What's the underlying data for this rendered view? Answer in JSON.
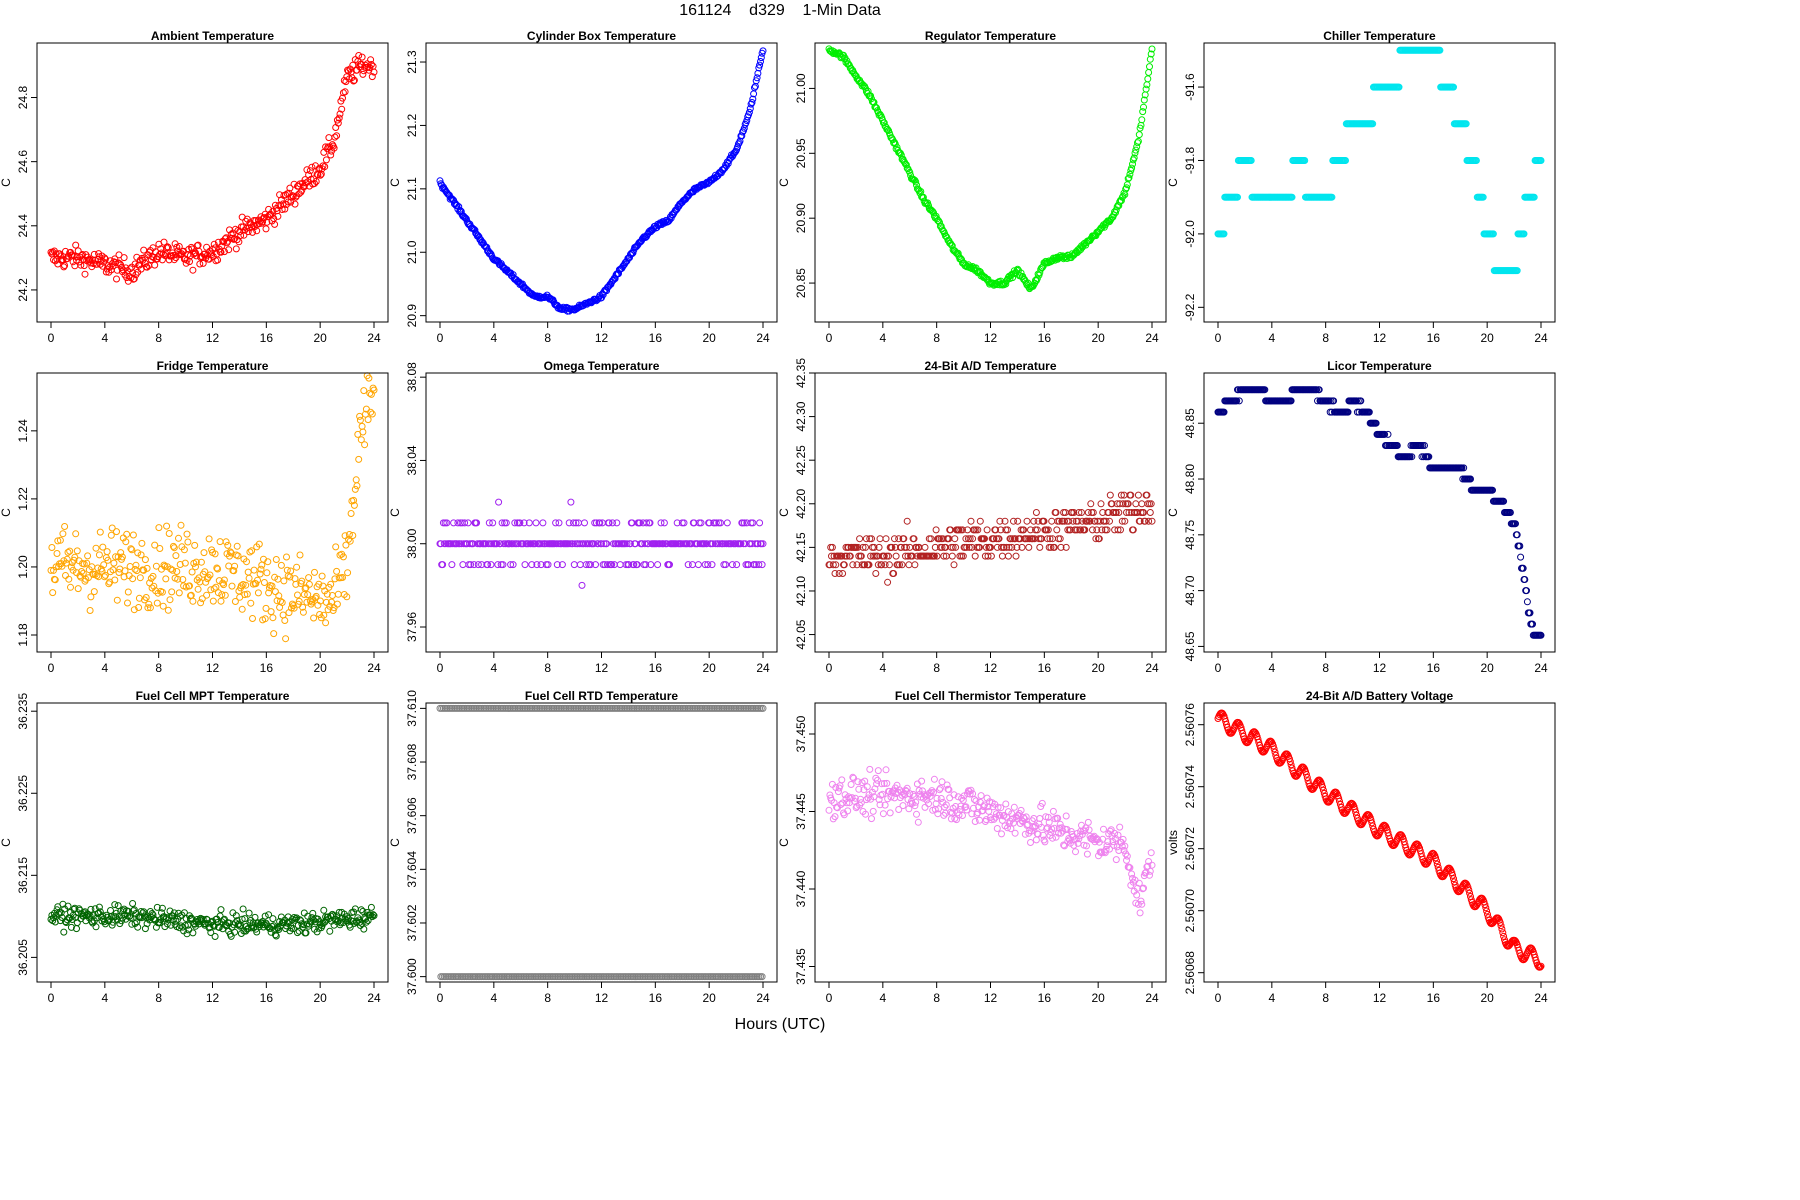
{
  "header": {
    "title": "161124    d329    1-Min Data"
  },
  "footer": {
    "xlabel": "Hours (UTC)"
  },
  "x_axis": {
    "ticks": [
      0,
      4,
      8,
      12,
      16,
      20,
      24
    ],
    "xlim": [
      0,
      24
    ]
  },
  "chart_data": [
    {
      "id": "ambient",
      "type": "scatter",
      "title": "Ambient Temperature",
      "ylabel": "C",
      "color": "#ff0000",
      "ylim": [
        24.1,
        24.97
      ],
      "yticks": [
        24.2,
        24.4,
        24.6,
        24.8
      ],
      "ytick_labels": [
        "24.2",
        "24.4",
        "24.6",
        "24.8"
      ],
      "x": [
        0,
        2,
        4,
        6,
        8,
        10,
        12,
        14,
        16,
        18,
        20,
        21,
        22,
        23,
        24
      ],
      "y": [
        24.3,
        24.3,
        24.28,
        24.26,
        24.32,
        24.3,
        24.32,
        24.38,
        24.42,
        24.5,
        24.58,
        24.66,
        24.86,
        24.9,
        24.9
      ],
      "spread": 0.06
    },
    {
      "id": "cylinder",
      "type": "scatter",
      "title": "Cylinder Box Temperature",
      "ylabel": "C",
      "color": "#0000ff",
      "ylim": [
        20.89,
        21.33
      ],
      "yticks": [
        20.9,
        21.0,
        21.1,
        21.2,
        21.3
      ],
      "ytick_labels": [
        "20.9",
        "21.0",
        "21.1",
        "21.2",
        "21.3"
      ],
      "x": [
        0,
        1,
        2,
        3,
        4,
        5,
        6,
        7,
        8,
        9,
        10,
        11,
        12,
        13,
        14,
        15,
        16,
        17,
        18,
        19,
        20,
        21,
        22,
        23,
        24
      ],
      "y": [
        21.11,
        21.08,
        21.05,
        21.02,
        20.99,
        20.97,
        20.95,
        20.93,
        20.93,
        20.91,
        20.91,
        20.92,
        20.93,
        20.96,
        20.99,
        21.02,
        21.04,
        21.05,
        21.08,
        21.1,
        21.11,
        21.13,
        21.16,
        21.22,
        21.32
      ],
      "spread": 0.005
    },
    {
      "id": "regulator",
      "type": "scatter",
      "title": "Regulator Temperature",
      "ylabel": "C",
      "color": "#00ee00",
      "ylim": [
        20.82,
        21.035
      ],
      "yticks": [
        20.85,
        20.9,
        20.95,
        21.0
      ],
      "ytick_labels": [
        "20.85",
        "20.90",
        "20.95",
        "21.00"
      ],
      "x": [
        0,
        1,
        2,
        3,
        4,
        5,
        6,
        7,
        8,
        9,
        10,
        11,
        12,
        13,
        14,
        15,
        16,
        17,
        18,
        19,
        20,
        21,
        22,
        23,
        24
      ],
      "y": [
        21.03,
        21.025,
        21.01,
        20.995,
        20.975,
        20.955,
        20.935,
        20.915,
        20.9,
        20.88,
        20.865,
        20.86,
        20.85,
        20.85,
        20.86,
        20.845,
        20.865,
        20.87,
        20.87,
        20.88,
        20.89,
        20.9,
        20.92,
        20.96,
        21.03
      ],
      "spread": 0.003
    },
    {
      "id": "chiller",
      "type": "scatter",
      "title": "Chiller Temperature",
      "ylabel": "C",
      "color": "#00e5ee",
      "ylim": [
        -92.24,
        -91.48
      ],
      "yticks": [
        -92.2,
        -92.0,
        -91.8,
        -91.6
      ],
      "ytick_labels": [
        "-92.2",
        "-92.0",
        "-91.8",
        "-91.6"
      ],
      "x": [
        0,
        1,
        2,
        3,
        4,
        5,
        6,
        7,
        8,
        9,
        10,
        11,
        12,
        13,
        14,
        15,
        16,
        17,
        18,
        19,
        20,
        21,
        22,
        23,
        24
      ],
      "y": [
        -92.0,
        -91.9,
        -91.8,
        -91.9,
        -91.9,
        -91.9,
        -91.8,
        -91.9,
        -91.9,
        -91.8,
        -91.7,
        -91.7,
        -91.6,
        -91.6,
        -91.5,
        -91.5,
        -91.5,
        -91.6,
        -91.7,
        -91.8,
        -92.0,
        -92.1,
        -92.1,
        -91.9,
        -91.8
      ],
      "spread": 0.0,
      "quant": 0.1
    },
    {
      "id": "fridge",
      "type": "scatter",
      "title": "Fridge Temperature",
      "ylabel": "C",
      "color": "#ffa500",
      "ylim": [
        1.175,
        1.257
      ],
      "yticks": [
        1.18,
        1.2,
        1.22,
        1.24
      ],
      "ytick_labels": [
        "1.18",
        "1.20",
        "1.22",
        "1.24"
      ],
      "x": [
        0,
        4,
        8,
        12,
        16,
        20,
        21,
        22,
        23,
        24
      ],
      "y": [
        1.2,
        1.2,
        1.2,
        1.2,
        1.195,
        1.19,
        1.19,
        1.2,
        1.24,
        1.25
      ],
      "spread": 0.02
    },
    {
      "id": "omega",
      "type": "scatter",
      "title": "Omega Temperature",
      "ylabel": "C",
      "color": "#a020f0",
      "ylim": [
        37.948,
        38.082
      ],
      "yticks": [
        37.96,
        38.0,
        38.04,
        38.08
      ],
      "ytick_labels": [
        "37.96",
        "38.00",
        "38.04",
        "38.08"
      ],
      "x": [
        0,
        12,
        24
      ],
      "y": [
        38.0,
        38.0,
        38.0
      ],
      "spread": 0.02,
      "quant": 0.01
    },
    {
      "id": "ad24temp",
      "type": "scatter",
      "title": "24-Bit A/D Temperature",
      "ylabel": "C",
      "color": "#b22222",
      "ylim": [
        42.03,
        42.35
      ],
      "yticks": [
        42.05,
        42.1,
        42.15,
        42.2,
        42.25,
        42.3,
        42.35
      ],
      "ytick_labels": [
        "42.05",
        "42.10",
        "42.15",
        "42.20",
        "42.25",
        "42.30",
        "42.35"
      ],
      "x": [
        0,
        4,
        8,
        12,
        16,
        20,
        24
      ],
      "y": [
        42.14,
        42.14,
        42.15,
        42.16,
        42.17,
        42.18,
        42.2
      ],
      "spread": 0.04,
      "quant": 0.01
    },
    {
      "id": "licor",
      "type": "scatter",
      "title": "Licor Temperature",
      "ylabel": "C",
      "color": "#000080",
      "ylim": [
        48.645,
        48.895
      ],
      "yticks": [
        48.65,
        48.7,
        48.75,
        48.8,
        48.85
      ],
      "ytick_labels": [
        "48.65",
        "48.70",
        "48.75",
        "48.80",
        "48.85"
      ],
      "x": [
        0,
        1,
        2,
        3,
        4,
        5,
        6,
        7,
        8,
        9,
        10,
        11,
        12,
        13,
        14,
        15,
        16,
        17,
        18,
        19,
        20,
        21,
        22,
        22.5,
        23,
        23.5,
        24
      ],
      "y": [
        48.86,
        48.87,
        48.88,
        48.88,
        48.87,
        48.87,
        48.88,
        48.88,
        48.87,
        48.86,
        48.87,
        48.86,
        48.84,
        48.83,
        48.82,
        48.83,
        48.81,
        48.81,
        48.81,
        48.79,
        48.79,
        48.78,
        48.76,
        48.73,
        48.69,
        48.66,
        48.66
      ],
      "spread": 0.005,
      "quant": 0.01
    },
    {
      "id": "fcmpt",
      "type": "scatter",
      "title": "Fuel Cell MPT Temperature",
      "ylabel": "C",
      "color": "#006400",
      "ylim": [
        36.202,
        36.236
      ],
      "yticks": [
        36.205,
        36.215,
        36.225,
        36.235
      ],
      "ytick_labels": [
        "36.205",
        "36.215",
        "36.225",
        "36.235"
      ],
      "x": [
        0,
        6,
        12,
        18,
        24
      ],
      "y": [
        36.21,
        36.21,
        36.209,
        36.209,
        36.21
      ],
      "spread": 0.0022
    },
    {
      "id": "fcrtd",
      "type": "scatter",
      "title": "Fuel Cell RTD Temperature",
      "ylabel": "C",
      "color": "#808080",
      "ylim": [
        37.5998,
        37.6102
      ],
      "yticks": [
        37.6,
        37.602,
        37.604,
        37.606,
        37.608,
        37.61
      ],
      "ytick_labels": [
        "37.600",
        "37.602",
        "37.604",
        "37.606",
        "37.608",
        "37.610"
      ],
      "x": [
        0,
        24
      ],
      "y": [
        37.61,
        37.6
      ],
      "spread": 0.0
    },
    {
      "id": "fcther",
      "type": "scatter",
      "title": "Fuel Cell Thermistor Temperature",
      "ylabel": "C",
      "color": "#ee82ee",
      "ylim": [
        37.434,
        37.452
      ],
      "yticks": [
        37.435,
        37.44,
        37.445,
        37.45
      ],
      "ytick_labels": [
        "37.435",
        "37.440",
        "37.445",
        "37.450"
      ],
      "x": [
        0,
        4,
        8,
        12,
        16,
        20,
        22,
        23,
        24
      ],
      "y": [
        37.446,
        37.446,
        37.446,
        37.445,
        37.444,
        37.443,
        37.443,
        37.439,
        37.442
      ],
      "spread": 0.0022
    },
    {
      "id": "battery",
      "type": "line",
      "title": "24-Bit A/D Battery Voltage",
      "ylabel": "volts",
      "color": "#ff0000",
      "ylim": [
        2.560677,
        2.560767
      ],
      "yticks": [
        2.56068,
        2.5607,
        2.56072,
        2.56074,
        2.56076
      ],
      "ytick_labels": [
        "2.56068",
        "2.56070",
        "2.56072",
        "2.56074",
        "2.56076"
      ],
      "x": [
        0,
        4,
        8,
        12,
        16,
        20,
        22,
        24
      ],
      "y": [
        2.560762,
        2.560752,
        2.560738,
        2.560726,
        2.560716,
        2.5607,
        2.560688,
        2.560684
      ],
      "wiggle": 2.5e-06
    }
  ]
}
